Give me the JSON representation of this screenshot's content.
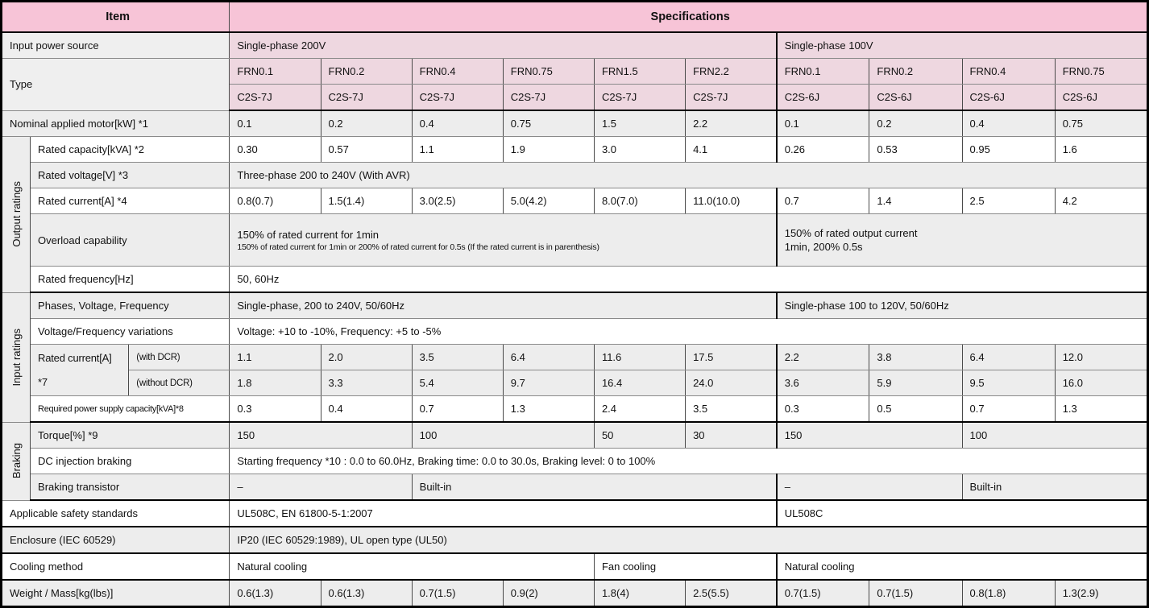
{
  "title": "Inverter standard specifications table",
  "colors": {
    "header_pink": "#f7c4d7",
    "row_pink": "#eed7e0",
    "row_gray": "#ededed",
    "row_white": "#ffffff",
    "border_black": "#000000"
  },
  "table": {
    "rows": [
      {
        "name": "header",
        "kind": "header",
        "sec": true,
        "cells": [
          {
            "t": "Item",
            "s": 3
          },
          {
            "t": "Specifications",
            "s": 10
          }
        ]
      },
      {
        "name": "input-power-source",
        "kind": "pink",
        "cells": [
          {
            "t": "Input power source",
            "s": 3,
            "cls": "label"
          },
          {
            "t": "Single-phase 200V",
            "s": 6
          },
          {
            "t": "Single-phase 100V",
            "s": 4,
            "sl": true
          }
        ]
      },
      {
        "name": "type-model",
        "kind": "pink",
        "cells": [
          {
            "t": "Type",
            "s": 3,
            "rs": 2,
            "cls": "label"
          },
          {
            "t": "FRN0.1"
          },
          {
            "t": "FRN0.2"
          },
          {
            "t": "FRN0.4"
          },
          {
            "t": "FRN0.75"
          },
          {
            "t": "FRN1.5"
          },
          {
            "t": "FRN2.2"
          },
          {
            "t": "FRN0.1",
            "sl": true
          },
          {
            "t": "FRN0.2"
          },
          {
            "t": "FRN0.4"
          },
          {
            "t": "FRN0.75"
          }
        ]
      },
      {
        "name": "type-suffix",
        "kind": "pink",
        "sec": true,
        "cells": [
          {
            "t": "C2S-7J"
          },
          {
            "t": "C2S-7J"
          },
          {
            "t": "C2S-7J"
          },
          {
            "t": "C2S-7J"
          },
          {
            "t": "C2S-7J"
          },
          {
            "t": "C2S-7J"
          },
          {
            "t": "C2S-6J",
            "sl": true
          },
          {
            "t": "C2S-6J"
          },
          {
            "t": "C2S-6J"
          },
          {
            "t": "C2S-6J"
          }
        ]
      },
      {
        "name": "nominal-motor",
        "kind": "gray",
        "cells": [
          {
            "t": "Nominal applied motor[kW] *1",
            "s": 3
          },
          {
            "t": "0.1"
          },
          {
            "t": "0.2"
          },
          {
            "t": "0.4"
          },
          {
            "t": "0.75"
          },
          {
            "t": "1.5"
          },
          {
            "t": "2.2"
          },
          {
            "t": "0.1",
            "sl": true
          },
          {
            "t": "0.2"
          },
          {
            "t": "0.4"
          },
          {
            "t": "0.75"
          }
        ]
      },
      {
        "name": "rated-capacity",
        "kind": "white",
        "cells": [
          {
            "t": "Output ratings",
            "rs": 5,
            "vert": true
          },
          {
            "t": "Rated capacity[kVA] *2",
            "s": 2
          },
          {
            "t": "0.30"
          },
          {
            "t": "0.57"
          },
          {
            "t": "1.1"
          },
          {
            "t": "1.9"
          },
          {
            "t": "3.0"
          },
          {
            "t": "4.1"
          },
          {
            "t": "0.26",
            "sl": true
          },
          {
            "t": "0.53"
          },
          {
            "t": "0.95"
          },
          {
            "t": "1.6"
          }
        ]
      },
      {
        "name": "rated-voltage",
        "kind": "gray",
        "cells": [
          {
            "t": "Rated voltage[V] *3",
            "s": 2
          },
          {
            "t": "Three-phase 200 to 240V (With AVR)",
            "s": 10
          }
        ]
      },
      {
        "name": "rated-current-output",
        "kind": "white",
        "cells": [
          {
            "t": "Rated current[A] *4",
            "s": 2
          },
          {
            "t": "0.8(0.7)"
          },
          {
            "t": "1.5(1.4)"
          },
          {
            "t": "3.0(2.5)"
          },
          {
            "t": "5.0(4.2)"
          },
          {
            "t": "8.0(7.0)"
          },
          {
            "t": "11.0(10.0)"
          },
          {
            "t": "0.7",
            "sl": true
          },
          {
            "t": "1.4"
          },
          {
            "t": "2.5"
          },
          {
            "t": "4.2"
          }
        ]
      },
      {
        "name": "overload-capability",
        "kind": "gray",
        "h64": true,
        "cells": [
          {
            "t": "Overload capability",
            "s": 2
          },
          {
            "s": 6,
            "cls": "multi",
            "lines": [
              {
                "t": "150% of rated current for 1min"
              },
              {
                "t": "150% of rated current for 1min or 200% of rated current for 0.5s (If the rated current is in parenthesis)",
                "sm": true
              }
            ]
          },
          {
            "s": 4,
            "sl": true,
            "cls": "multi",
            "lines": [
              {
                "t": "150% of rated output current"
              },
              {
                "t": "1min, 200% 0.5s"
              }
            ]
          }
        ]
      },
      {
        "name": "rated-frequency",
        "kind": "white",
        "sec": true,
        "cells": [
          {
            "t": "Rated frequency[Hz]",
            "s": 2
          },
          {
            "t": "50, 60Hz",
            "s": 10
          }
        ]
      },
      {
        "name": "phases-voltage-frequency",
        "kind": "gray",
        "cells": [
          {
            "t": "Input ratings",
            "rs": 5,
            "vert": true
          },
          {
            "t": "Phases, Voltage, Frequency",
            "s": 2
          },
          {
            "t": "Single-phase, 200 to 240V, 50/60Hz",
            "s": 6
          },
          {
            "t": "Single-phase 100 to 120V, 50/60Hz",
            "s": 4,
            "sl": true
          }
        ]
      },
      {
        "name": "voltage-frequency-variations",
        "kind": "white",
        "cells": [
          {
            "t": "Voltage/Frequency variations",
            "s": 2
          },
          {
            "t": "Voltage: +10 to -10%, Frequency: +5 to -5%",
            "s": 10
          }
        ]
      },
      {
        "name": "rated-current-with-dcr",
        "kind": "gray",
        "cells": [
          {
            "rs": 2,
            "cls": "sm gap multi",
            "lines": [
              {
                "t": "Rated current[A]"
              },
              {
                "t": "*7"
              }
            ]
          },
          {
            "t": "(with DCR)",
            "cls": "sm"
          },
          {
            "t": "1.1"
          },
          {
            "t": "2.0"
          },
          {
            "t": "3.5"
          },
          {
            "t": "6.4"
          },
          {
            "t": "11.6"
          },
          {
            "t": "17.5"
          },
          {
            "t": "2.2",
            "sl": true
          },
          {
            "t": "3.8"
          },
          {
            "t": "6.4"
          },
          {
            "t": "12.0"
          }
        ]
      },
      {
        "name": "rated-current-without-dcr",
        "kind": "gray",
        "cells": [
          {
            "t": "(without DCR)",
            "cls": "sm"
          },
          {
            "t": "1.8"
          },
          {
            "t": "3.3"
          },
          {
            "t": "5.4"
          },
          {
            "t": "9.7"
          },
          {
            "t": "16.4"
          },
          {
            "t": "24.0"
          },
          {
            "t": "3.6",
            "sl": true
          },
          {
            "t": "5.9"
          },
          {
            "t": "9.5"
          },
          {
            "t": "16.0"
          }
        ]
      },
      {
        "name": "required-power-supply",
        "kind": "white",
        "sec": true,
        "cells": [
          {
            "t": "Required power supply capacity[kVA]*8",
            "s": 2,
            "cls": "xs"
          },
          {
            "t": "0.3"
          },
          {
            "t": "0.4"
          },
          {
            "t": "0.7"
          },
          {
            "t": "1.3"
          },
          {
            "t": "2.4"
          },
          {
            "t": "3.5"
          },
          {
            "t": "0.3",
            "sl": true
          },
          {
            "t": "0.5"
          },
          {
            "t": "0.7"
          },
          {
            "t": "1.3"
          }
        ]
      },
      {
        "name": "braking-torque",
        "kind": "gray",
        "cells": [
          {
            "t": "Braking",
            "rs": 3,
            "vert": true
          },
          {
            "t": "Torque[%] *9",
            "s": 2
          },
          {
            "t": "150",
            "s": 2
          },
          {
            "t": "100",
            "s": 2
          },
          {
            "t": "50"
          },
          {
            "t": "30"
          },
          {
            "t": "150",
            "s": 2,
            "sl": true
          },
          {
            "t": "100",
            "s": 2
          }
        ]
      },
      {
        "name": "dc-injection-braking",
        "kind": "white",
        "cells": [
          {
            "t": "DC injection braking",
            "s": 2
          },
          {
            "t": "Starting frequency *10 : 0.0 to 60.0Hz, Braking time: 0.0 to 30.0s, Braking level: 0 to 100%",
            "s": 10
          }
        ]
      },
      {
        "name": "braking-transistor",
        "kind": "gray",
        "sec": true,
        "cells": [
          {
            "t": "Braking transistor",
            "s": 2
          },
          {
            "t": "–",
            "s": 2
          },
          {
            "t": "Built-in",
            "s": 4
          },
          {
            "t": "–",
            "s": 2,
            "sl": true
          },
          {
            "t": "Built-in",
            "s": 2
          }
        ]
      },
      {
        "name": "safety-standards",
        "kind": "white",
        "sec": true,
        "cells": [
          {
            "t": "Applicable safety standards",
            "s": 3
          },
          {
            "t": "UL508C, EN 61800-5-1:2007",
            "s": 6
          },
          {
            "t": "UL508C",
            "s": 4,
            "sl": true
          }
        ]
      },
      {
        "name": "enclosure",
        "kind": "gray",
        "sec": true,
        "cells": [
          {
            "t": "Enclosure (IEC 60529)",
            "s": 3
          },
          {
            "t": "IP20 (IEC 60529:1989), UL open type (UL50)",
            "s": 10
          }
        ]
      },
      {
        "name": "cooling-method",
        "kind": "white",
        "sec": true,
        "cells": [
          {
            "t": "Cooling method",
            "s": 3
          },
          {
            "t": "Natural cooling",
            "s": 4
          },
          {
            "t": "Fan cooling",
            "s": 2
          },
          {
            "t": "Natural cooling",
            "s": 4,
            "sl": true
          }
        ]
      },
      {
        "name": "weight-mass",
        "kind": "gray",
        "cells": [
          {
            "t": "Weight / Mass[kg(lbs)]",
            "s": 3
          },
          {
            "t": "0.6(1.3)"
          },
          {
            "t": "0.6(1.3)"
          },
          {
            "t": "0.7(1.5)"
          },
          {
            "t": "0.9(2)"
          },
          {
            "t": "1.8(4)"
          },
          {
            "t": "2.5(5.5)"
          },
          {
            "t": "0.7(1.5)",
            "sl": true
          },
          {
            "t": "0.7(1.5)"
          },
          {
            "t": "0.8(1.8)"
          },
          {
            "t": "1.3(2.9)"
          }
        ]
      }
    ]
  }
}
